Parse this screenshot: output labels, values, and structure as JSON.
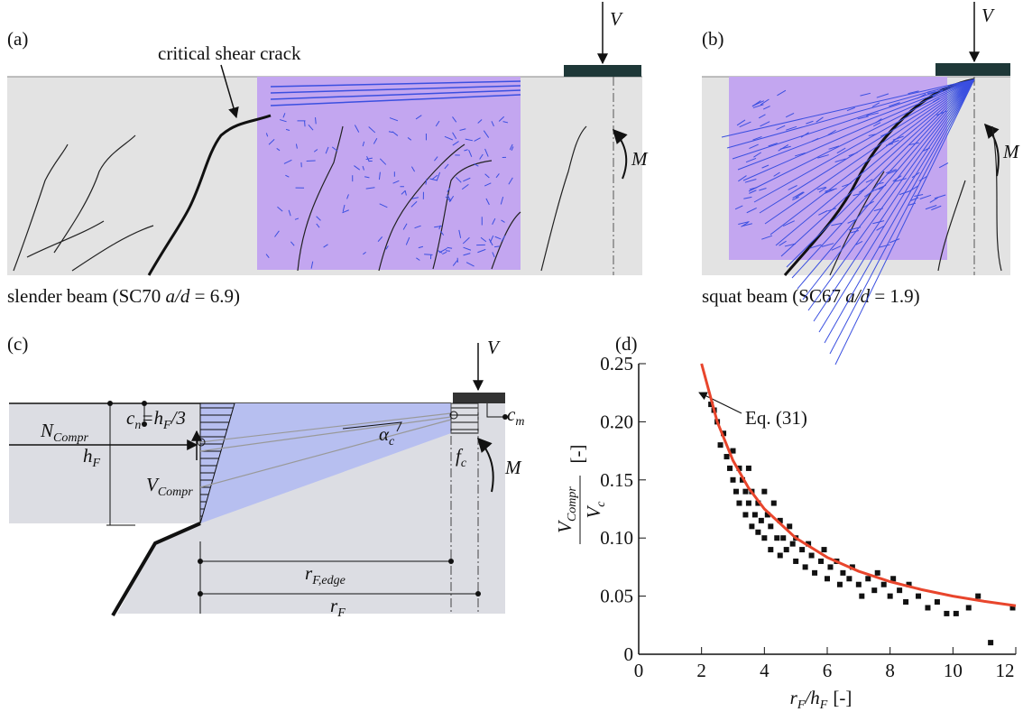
{
  "panel_a": {
    "label": "(a)",
    "crack_label": "critical shear crack",
    "load": "V",
    "moment": "M",
    "caption": {
      "text": "slender beam (SC70 ",
      "italic": "a/d",
      "tail": " = 6.9)"
    }
  },
  "panel_b": {
    "label": "(b)",
    "load": "V",
    "moment": "M",
    "caption": {
      "text": "squat beam (SC67 ",
      "italic": "a/d",
      "tail": " = 1.9)"
    }
  },
  "panel_c": {
    "label": "(c)",
    "load": "V",
    "moment": "M",
    "n_compr": {
      "base": "N",
      "sub": "Compr"
    },
    "c_n": {
      "base": "c",
      "sub": "n",
      "eq": "=h",
      "eq_sub": "F",
      "tail": "/3"
    },
    "h_f": {
      "base": "h",
      "sub": "F"
    },
    "v_compr": {
      "base": "V",
      "sub": "Compr"
    },
    "alpha_c": {
      "base": "α",
      "sub": "c"
    },
    "f_c": {
      "base": "f",
      "sub": "c"
    },
    "c_m": {
      "base": "c",
      "sub": "m"
    },
    "r_f_edge": {
      "base": "r",
      "sub": "F,edge"
    },
    "r_f": {
      "base": "r",
      "sub": "F"
    }
  },
  "panel_d": {
    "label": "(d)"
  },
  "chart_data": {
    "type": "scatter",
    "annotation": "Eq. (31)",
    "x_label": {
      "base": "r",
      "sub": "F",
      "mid": "/h",
      "mid_sub": "F",
      "unit": "[-]"
    },
    "y_label": {
      "num": "V",
      "num_sub": "Compr",
      "den": "V",
      "den_sub": "c",
      "unit": "[-]"
    },
    "xlim": [
      0,
      12
    ],
    "ylim": [
      0,
      0.25
    ],
    "xticks": [
      0,
      2,
      4,
      6,
      8,
      10,
      12
    ],
    "yticks": [
      0,
      0.05,
      {
        "value": 0.1,
        "label": "0.10"
      },
      0.15,
      {
        "value": 0.2,
        "label": "0.20"
      },
      0.25
    ],
    "series": [
      {
        "type": "scatter",
        "color": "#111111",
        "x": [
          2.3,
          2.4,
          2.5,
          2.6,
          2.7,
          2.8,
          2.9,
          3.0,
          3.0,
          3.1,
          3.2,
          3.2,
          3.3,
          3.4,
          3.4,
          3.5,
          3.5,
          3.6,
          3.6,
          3.7,
          3.8,
          3.8,
          3.9,
          4.0,
          4.0,
          4.1,
          4.2,
          4.2,
          4.3,
          4.4,
          4.5,
          4.5,
          4.6,
          4.7,
          4.8,
          4.9,
          5.0,
          5.0,
          5.2,
          5.3,
          5.4,
          5.5,
          5.6,
          5.8,
          5.9,
          6.0,
          6.1,
          6.3,
          6.4,
          6.5,
          6.7,
          6.8,
          7.0,
          7.1,
          7.3,
          7.5,
          7.6,
          7.8,
          8.0,
          8.1,
          8.3,
          8.5,
          8.6,
          8.9,
          9.2,
          9.5,
          9.8,
          10.1,
          10.5,
          10.8,
          11.2,
          11.9
        ],
        "values": [
          0.215,
          0.21,
          0.2,
          0.18,
          0.19,
          0.17,
          0.16,
          0.175,
          0.15,
          0.14,
          0.16,
          0.13,
          0.15,
          0.12,
          0.14,
          0.16,
          0.13,
          0.11,
          0.14,
          0.12,
          0.13,
          0.105,
          0.115,
          0.14,
          0.1,
          0.12,
          0.11,
          0.09,
          0.13,
          0.1,
          0.115,
          0.085,
          0.1,
          0.09,
          0.11,
          0.095,
          0.08,
          0.1,
          0.09,
          0.075,
          0.095,
          0.085,
          0.07,
          0.08,
          0.09,
          0.065,
          0.075,
          0.08,
          0.06,
          0.07,
          0.065,
          0.075,
          0.06,
          0.05,
          0.065,
          0.055,
          0.07,
          0.06,
          0.05,
          0.065,
          0.055,
          0.045,
          0.06,
          0.05,
          0.04,
          0.045,
          0.035,
          0.035,
          0.04,
          0.05,
          0.01,
          0.04
        ]
      },
      {
        "type": "line",
        "color": "#e8452c",
        "x": [
          2,
          2.5,
          3,
          3.5,
          4,
          5,
          6,
          7,
          8,
          9,
          10,
          11,
          12
        ],
        "values": [
          0.25,
          0.2,
          0.1667,
          0.1429,
          0.125,
          0.1,
          0.0833,
          0.0714,
          0.0625,
          0.0556,
          0.05,
          0.0455,
          0.0417
        ]
      }
    ]
  }
}
